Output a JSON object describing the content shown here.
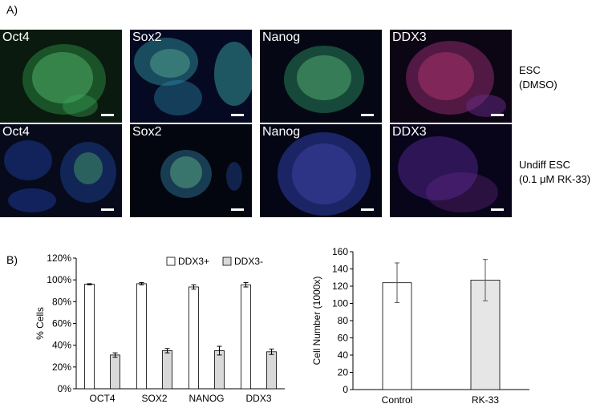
{
  "panel_a": {
    "letter": "A)",
    "rows": [
      {
        "condition": [
          "ESC",
          "(DMSO)"
        ],
        "tiles": [
          {
            "label": "Oct4",
            "style": "green"
          },
          {
            "label": "Sox2",
            "style": "cyan"
          },
          {
            "label": "Nanog",
            "style": "green"
          },
          {
            "label": "DDX3",
            "style": "red"
          }
        ]
      },
      {
        "condition": [
          "Undiff ESC",
          "(0.1 μM RK-33)"
        ],
        "tiles": [
          {
            "label": "Oct4",
            "style": "sparse"
          },
          {
            "label": "Sox2",
            "style": "sparse"
          },
          {
            "label": "Nanog",
            "style": "blue"
          },
          {
            "label": "DDX3",
            "style": "purple"
          }
        ]
      }
    ]
  },
  "panel_b": {
    "letter": "B)"
  },
  "chart_data": [
    {
      "type": "bar",
      "categories": [
        "OCT4",
        "SOX2",
        "NANOG",
        "DDX3"
      ],
      "series": [
        {
          "name": "DDX3+",
          "values": [
            96,
            96.5,
            93.5,
            95.5
          ],
          "errors": [
            0.5,
            1,
            2,
            2
          ],
          "color": "#ffffff"
        },
        {
          "name": "DDX3-",
          "values": [
            31,
            35,
            35,
            34
          ],
          "errors": [
            2,
            2,
            4,
            2.5
          ],
          "color": "#d9d9d9"
        }
      ],
      "ylabel": "% Cells",
      "ylim": [
        0,
        120
      ],
      "yticks": [
        "0%",
        "20%",
        "40%",
        "60%",
        "80%",
        "100%",
        "120%"
      ],
      "legend": "top",
      "grid": false
    },
    {
      "type": "bar",
      "categories": [
        "Control",
        "RK-33"
      ],
      "values": [
        124,
        127
      ],
      "errors": [
        23,
        24
      ],
      "colors": [
        "#ffffff",
        "#e6e6e6"
      ],
      "ylabel": "Cell Number (1000x)",
      "ylim": [
        0,
        160
      ],
      "yticks": [
        "0",
        "20",
        "40",
        "60",
        "80",
        "100",
        "120",
        "140",
        "160"
      ],
      "grid": false
    }
  ]
}
